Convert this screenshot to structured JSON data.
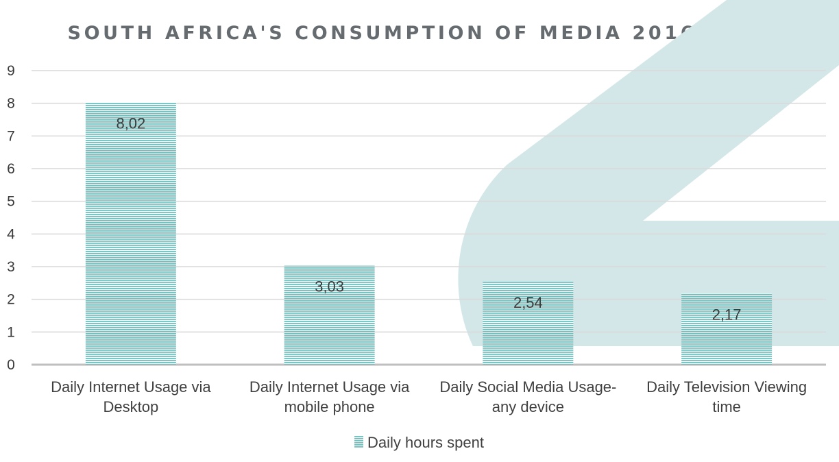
{
  "chart_data": {
    "type": "bar",
    "title": "SOUTH AFRICA'S CONSUMPTION OF MEDIA 2016-2017",
    "categories": [
      [
        "Daily Internet Usage via",
        "Desktop"
      ],
      [
        "Daily Internet Usage via",
        "mobile phone"
      ],
      [
        "Daily Social Media Usage-",
        "any device"
      ],
      [
        "Daily Television Viewing",
        "time"
      ]
    ],
    "series": [
      {
        "name": "Daily hours spent",
        "values": [
          8.02,
          3.03,
          2.54,
          2.17
        ],
        "labels": [
          "8,02",
          "3,03",
          "2,54",
          "2,17"
        ]
      }
    ],
    "ylim": [
      0,
      9
    ],
    "yticks": [
      0,
      1,
      2,
      3,
      4,
      5,
      6,
      7,
      8,
      9
    ],
    "grid": true,
    "legend_position": "bottom",
    "colors": {
      "bar": "#6fc0be",
      "bar_stripe": "#ffffff",
      "grid": "#d9d9d9",
      "axis": "#bfbfbf",
      "watermark": "#d3e6e8"
    }
  }
}
